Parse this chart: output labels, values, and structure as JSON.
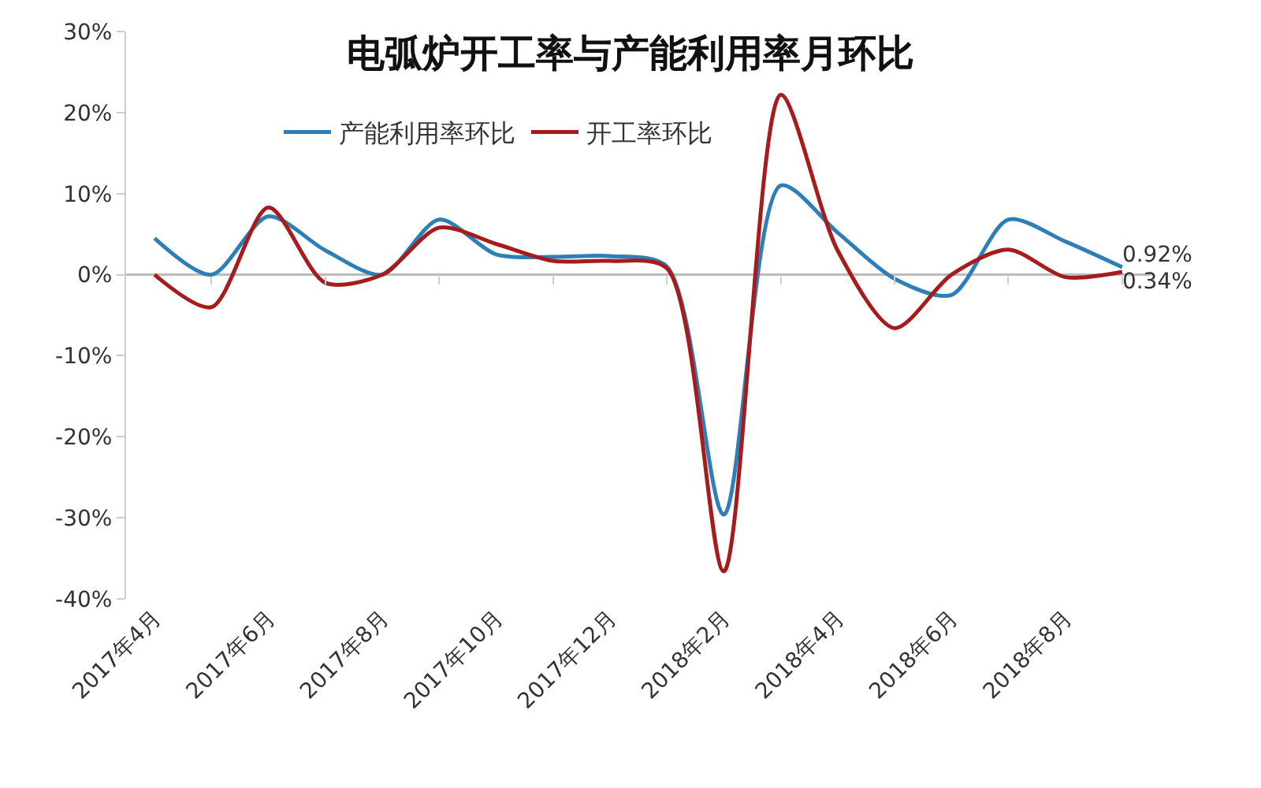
{
  "chart_data": {
    "type": "line",
    "title": "电弧炉开工率与产能利用率月环比",
    "categories": [
      "2017年4月",
      null,
      "2017年6月",
      null,
      "2017年8月",
      null,
      "2017年10月",
      null,
      "2017年12月",
      null,
      "2018年2月",
      null,
      "2018年4月",
      null,
      "2018年6月",
      null,
      "2018年8月",
      null
    ],
    "series": [
      {
        "name": "产能利用率环比",
        "color": "#2e7fb8",
        "values": [
          4.5,
          0,
          7.2,
          3,
          0,
          6.8,
          2.5,
          2.2,
          2.3,
          1,
          -29.6,
          11,
          5.2,
          -0.5,
          -2.5,
          6.8,
          4.1,
          0.92
        ],
        "value_labels": [
          null,
          null,
          null,
          null,
          null,
          null,
          null,
          null,
          null,
          null,
          null,
          null,
          null,
          null,
          null,
          null,
          null,
          "0.92%"
        ]
      },
      {
        "name": "开工率环比",
        "color": "#a61c1c",
        "values": [
          0,
          -4,
          8.3,
          -1,
          0,
          5.8,
          3.8,
          1.7,
          1.7,
          0.8,
          -36.6,
          22.2,
          3,
          -6.6,
          0,
          3.1,
          -0.3,
          0.34
        ],
        "value_labels": [
          null,
          null,
          null,
          null,
          null,
          null,
          null,
          null,
          null,
          null,
          null,
          null,
          null,
          null,
          null,
          null,
          null,
          "0.34%"
        ]
      }
    ],
    "ylim": [
      -40,
      30
    ],
    "yticks": [
      {
        "value": -40,
        "label": "-40%"
      },
      {
        "value": -30,
        "label": "-30%"
      },
      {
        "value": -20,
        "label": "-20%"
      },
      {
        "value": -10,
        "label": "-10%"
      },
      {
        "value": 0,
        "label": "0%"
      },
      {
        "value": 10,
        "label": "10%"
      },
      {
        "value": 20,
        "label": "20%"
      },
      {
        "value": 30,
        "label": "30%"
      }
    ],
    "ref_lines": [
      {
        "axis": "y",
        "value": 0,
        "color": "#bbbbbb"
      }
    ],
    "grid": false,
    "legend": "top",
    "marker": "none",
    "line_style": "solid"
  }
}
